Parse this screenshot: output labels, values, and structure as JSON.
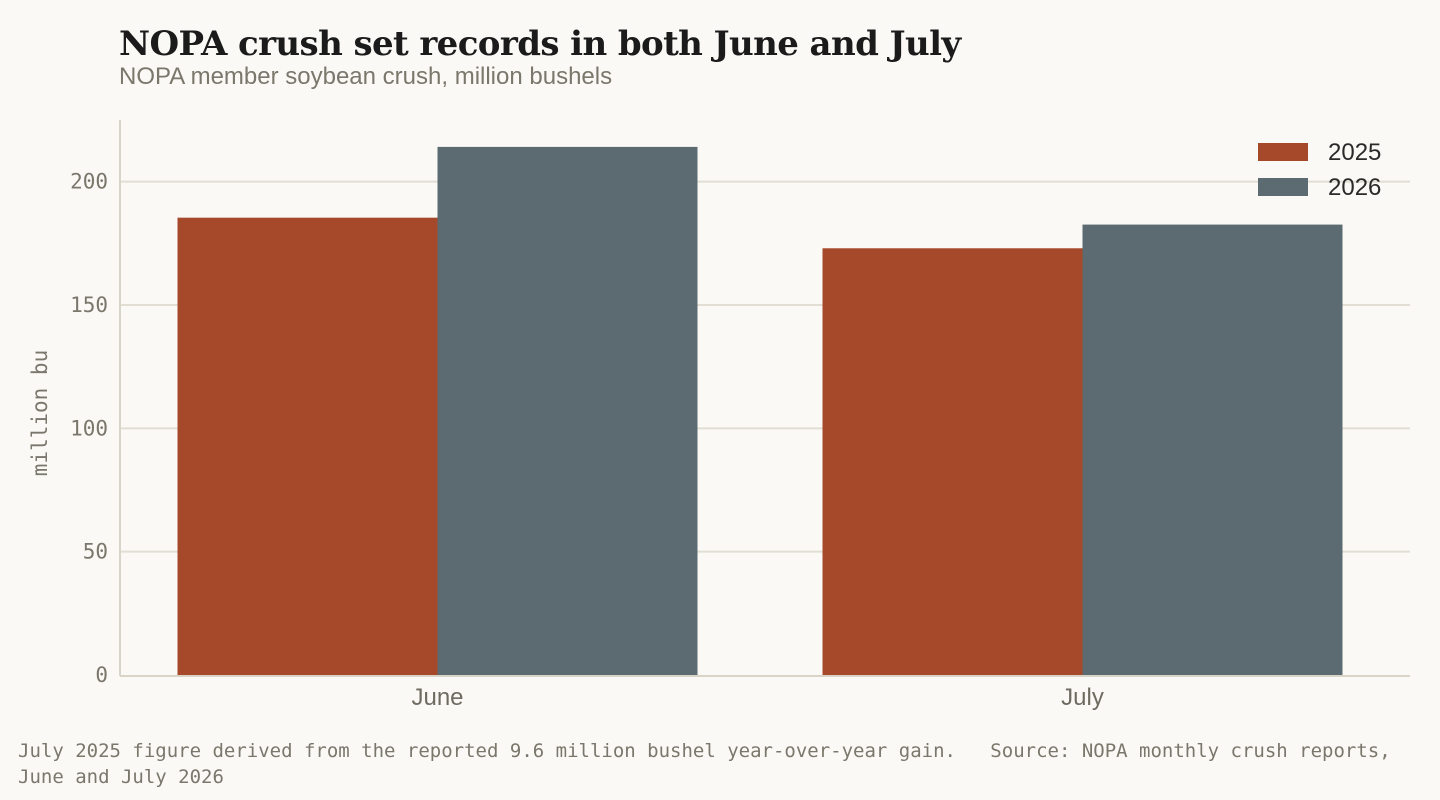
{
  "colors": {
    "background": "#faf9f5",
    "grid": "#e2ded4",
    "axis": "#d8d4c8",
    "series_2025": "#a6492b",
    "series_2026": "#5c6a71"
  },
  "chart_data": {
    "type": "bar",
    "title": "NOPA crush set records in both June and July",
    "subtitle": "NOPA member soybean crush, million bushels",
    "xlabel": "",
    "ylabel": "million bu",
    "categories": [
      "June",
      "July"
    ],
    "series": [
      {
        "name": "2025",
        "values": [
          185.4,
          173.0
        ]
      },
      {
        "name": "2026",
        "values": [
          214.1,
          182.6
        ]
      }
    ],
    "ylim": [
      0,
      225
    ],
    "yticks": [
      0,
      50,
      100,
      150,
      200
    ],
    "grid": true,
    "legend_position": "top-right"
  },
  "footnote": "July 2025 figure derived from the reported 9.6 million bushel year-over-year gain.   Source: NOPA monthly crush reports, June and July 2026"
}
